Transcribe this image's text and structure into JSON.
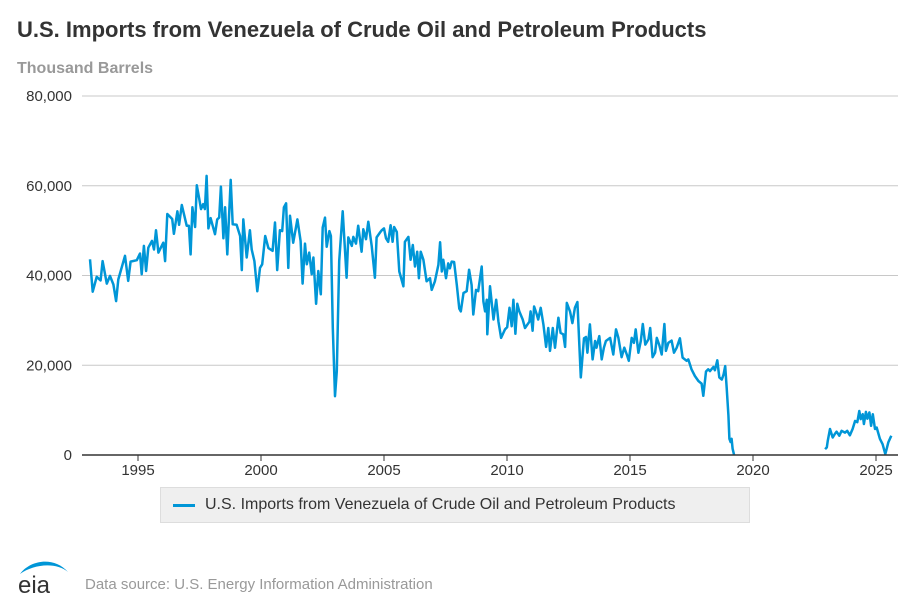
{
  "header": {
    "title": "U.S. Imports from Venezuela of Crude Oil and Petroleum Products",
    "unit": "Thousand Barrels"
  },
  "legend": {
    "label": "U.S. Imports from Venezuela of Crude Oil and Petroleum Products"
  },
  "footer": {
    "logo_text": "eia",
    "source": "Data source: U.S. Energy Information Administration"
  },
  "colors": {
    "series": "#0096d7",
    "grid": "#c8c8c8",
    "axis": "#333333"
  },
  "chart_data": {
    "type": "line",
    "title": "U.S. Imports from Venezuela of Crude Oil and Petroleum Products",
    "ylabel": "Thousand Barrels",
    "xlabel": "",
    "xlim": [
      1993,
      2025.7
    ],
    "ylim": [
      0,
      80000
    ],
    "grid": true,
    "legend_position": "bottom",
    "x_ticks": [
      "1995",
      "2000",
      "2005",
      "2010",
      "2015",
      "2020",
      "2025"
    ],
    "y_ticks": [
      "0",
      "20,000",
      "40,000",
      "60,000",
      "80,000"
    ],
    "series": [
      {
        "name": "U.S. Imports from Venezuela of Crude Oil and Petroleum Products",
        "points": [
          [
            1993.05,
            43600
          ],
          [
            1993.16,
            36400
          ],
          [
            1993.32,
            39700
          ],
          [
            1993.48,
            38900
          ],
          [
            1993.56,
            43200
          ],
          [
            1993.73,
            38200
          ],
          [
            1993.86,
            39900
          ],
          [
            1994.0,
            38000
          ],
          [
            1994.11,
            34300
          ],
          [
            1994.2,
            39100
          ],
          [
            1994.47,
            44400
          ],
          [
            1994.6,
            38800
          ],
          [
            1994.7,
            43100
          ],
          [
            1994.95,
            43400
          ],
          [
            1995.08,
            44900
          ],
          [
            1995.15,
            40300
          ],
          [
            1995.24,
            46600
          ],
          [
            1995.33,
            41000
          ],
          [
            1995.42,
            46200
          ],
          [
            1995.57,
            47700
          ],
          [
            1995.65,
            45800
          ],
          [
            1995.73,
            50100
          ],
          [
            1995.83,
            45100
          ],
          [
            1996.03,
            47300
          ],
          [
            1996.1,
            43200
          ],
          [
            1996.19,
            53700
          ],
          [
            1996.39,
            52600
          ],
          [
            1996.46,
            49300
          ],
          [
            1996.6,
            54300
          ],
          [
            1996.67,
            51300
          ],
          [
            1996.78,
            55700
          ],
          [
            1996.98,
            51100
          ],
          [
            1997.07,
            51100
          ],
          [
            1997.14,
            44700
          ],
          [
            1997.21,
            55200
          ],
          [
            1997.32,
            50800
          ],
          [
            1997.39,
            60100
          ],
          [
            1997.49,
            57000
          ],
          [
            1997.56,
            54800
          ],
          [
            1997.65,
            55900
          ],
          [
            1997.72,
            54800
          ],
          [
            1997.79,
            62200
          ],
          [
            1997.86,
            50500
          ],
          [
            1997.95,
            52800
          ],
          [
            1998.13,
            49200
          ],
          [
            1998.22,
            52500
          ],
          [
            1998.3,
            52900
          ],
          [
            1998.37,
            59800
          ],
          [
            1998.47,
            48300
          ],
          [
            1998.54,
            55200
          ],
          [
            1998.63,
            44700
          ],
          [
            1998.77,
            61300
          ],
          [
            1998.85,
            51400
          ],
          [
            1999.01,
            51300
          ],
          [
            1999.15,
            48800
          ],
          [
            1999.22,
            41200
          ],
          [
            1999.28,
            52500
          ],
          [
            1999.42,
            44000
          ],
          [
            1999.55,
            50100
          ],
          [
            1999.62,
            45800
          ],
          [
            1999.73,
            43200
          ],
          [
            1999.85,
            36500
          ],
          [
            1999.96,
            41700
          ],
          [
            2000.05,
            42500
          ],
          [
            2000.17,
            48800
          ],
          [
            2000.3,
            46100
          ],
          [
            2000.47,
            45500
          ],
          [
            2000.57,
            51800
          ],
          [
            2000.66,
            41200
          ],
          [
            2000.77,
            50100
          ],
          [
            2000.86,
            49900
          ],
          [
            2000.93,
            55200
          ],
          [
            2001.02,
            56100
          ],
          [
            2001.11,
            41700
          ],
          [
            2001.18,
            53300
          ],
          [
            2001.31,
            47300
          ],
          [
            2001.48,
            52500
          ],
          [
            2001.61,
            47700
          ],
          [
            2001.69,
            38200
          ],
          [
            2001.79,
            47100
          ],
          [
            2001.86,
            42500
          ],
          [
            2001.96,
            45100
          ],
          [
            2002.06,
            40300
          ],
          [
            2002.13,
            44000
          ],
          [
            2002.24,
            33700
          ],
          [
            2002.33,
            41000
          ],
          [
            2002.43,
            35800
          ],
          [
            2002.51,
            50700
          ],
          [
            2002.6,
            52900
          ],
          [
            2002.67,
            46400
          ],
          [
            2002.78,
            49900
          ],
          [
            2002.84,
            48800
          ],
          [
            2002.92,
            28300
          ],
          [
            2003.01,
            13100
          ],
          [
            2003.08,
            18700
          ],
          [
            2003.18,
            43200
          ],
          [
            2003.32,
            54300
          ],
          [
            2003.48,
            39500
          ],
          [
            2003.55,
            48500
          ],
          [
            2003.69,
            46600
          ],
          [
            2003.75,
            48600
          ],
          [
            2003.86,
            47100
          ],
          [
            2003.95,
            51100
          ],
          [
            2004.09,
            45300
          ],
          [
            2004.16,
            50300
          ],
          [
            2004.27,
            48100
          ],
          [
            2004.36,
            52000
          ],
          [
            2004.5,
            46600
          ],
          [
            2004.63,
            39500
          ],
          [
            2004.7,
            48500
          ],
          [
            2004.84,
            49600
          ],
          [
            2004.91,
            50100
          ],
          [
            2005.0,
            50500
          ],
          [
            2005.08,
            48300
          ],
          [
            2005.17,
            47500
          ],
          [
            2005.27,
            51200
          ],
          [
            2005.35,
            47500
          ],
          [
            2005.41,
            50800
          ],
          [
            2005.52,
            49700
          ],
          [
            2005.62,
            40900
          ],
          [
            2005.79,
            37600
          ],
          [
            2005.85,
            47500
          ],
          [
            2005.99,
            48600
          ],
          [
            2006.08,
            43500
          ],
          [
            2006.17,
            46800
          ],
          [
            2006.26,
            42000
          ],
          [
            2006.35,
            45300
          ],
          [
            2006.42,
            39400
          ],
          [
            2006.49,
            45300
          ],
          [
            2006.6,
            43500
          ],
          [
            2006.73,
            38700
          ],
          [
            2006.87,
            39400
          ],
          [
            2006.94,
            36800
          ],
          [
            2007.07,
            38700
          ],
          [
            2007.21,
            42400
          ],
          [
            2007.28,
            47400
          ],
          [
            2007.35,
            40900
          ],
          [
            2007.41,
            43500
          ],
          [
            2007.52,
            39400
          ],
          [
            2007.61,
            42700
          ],
          [
            2007.68,
            41600
          ],
          [
            2007.75,
            43100
          ],
          [
            2007.85,
            43000
          ],
          [
            2007.96,
            37900
          ],
          [
            2008.06,
            32600
          ],
          [
            2008.12,
            32000
          ],
          [
            2008.23,
            36100
          ],
          [
            2008.36,
            36500
          ],
          [
            2008.46,
            41300
          ],
          [
            2008.56,
            37900
          ],
          [
            2008.63,
            31300
          ],
          [
            2008.74,
            36800
          ],
          [
            2008.83,
            36500
          ],
          [
            2008.97,
            42000
          ],
          [
            2009.04,
            34200
          ],
          [
            2009.11,
            32000
          ],
          [
            2009.18,
            34600
          ],
          [
            2009.2,
            26900
          ],
          [
            2009.31,
            37600
          ],
          [
            2009.45,
            30200
          ],
          [
            2009.56,
            34600
          ],
          [
            2009.65,
            29800
          ],
          [
            2009.76,
            26100
          ],
          [
            2009.92,
            28000
          ],
          [
            2010.01,
            28500
          ],
          [
            2010.1,
            32800
          ],
          [
            2010.19,
            28700
          ],
          [
            2010.26,
            34600
          ],
          [
            2010.34,
            27000
          ],
          [
            2010.42,
            33700
          ],
          [
            2010.5,
            32000
          ],
          [
            2010.64,
            30200
          ],
          [
            2010.73,
            28300
          ],
          [
            2010.91,
            29700
          ],
          [
            2010.96,
            32000
          ],
          [
            2011.04,
            27700
          ],
          [
            2011.1,
            33100
          ],
          [
            2011.21,
            31300
          ],
          [
            2011.27,
            30200
          ],
          [
            2011.37,
            32800
          ],
          [
            2011.48,
            29100
          ],
          [
            2011.59,
            24100
          ],
          [
            2011.68,
            28300
          ],
          [
            2011.75,
            23200
          ],
          [
            2011.86,
            28300
          ],
          [
            2011.95,
            23900
          ],
          [
            2012.09,
            30600
          ],
          [
            2012.18,
            27200
          ],
          [
            2012.29,
            26900
          ],
          [
            2012.36,
            24100
          ],
          [
            2012.43,
            33900
          ],
          [
            2012.56,
            32000
          ],
          [
            2012.66,
            29400
          ],
          [
            2012.76,
            32800
          ],
          [
            2012.86,
            34100
          ],
          [
            2013.0,
            17300
          ],
          [
            2013.13,
            26000
          ],
          [
            2013.21,
            26300
          ],
          [
            2013.27,
            22800
          ],
          [
            2013.37,
            29100
          ],
          [
            2013.48,
            21300
          ],
          [
            2013.58,
            25400
          ],
          [
            2013.64,
            23900
          ],
          [
            2013.75,
            26500
          ],
          [
            2013.85,
            21300
          ],
          [
            2013.94,
            23900
          ],
          [
            2014.02,
            25400
          ],
          [
            2014.19,
            26100
          ],
          [
            2014.32,
            22400
          ],
          [
            2014.43,
            28000
          ],
          [
            2014.53,
            26100
          ],
          [
            2014.66,
            21800
          ],
          [
            2014.77,
            23900
          ],
          [
            2014.87,
            22400
          ],
          [
            2014.95,
            21000
          ],
          [
            2015.07,
            26100
          ],
          [
            2015.16,
            25000
          ],
          [
            2015.23,
            28000
          ],
          [
            2015.34,
            22800
          ],
          [
            2015.44,
            25400
          ],
          [
            2015.52,
            29200
          ],
          [
            2015.62,
            24600
          ],
          [
            2015.75,
            25800
          ],
          [
            2015.82,
            28300
          ],
          [
            2015.92,
            21800
          ],
          [
            2016.02,
            22800
          ],
          [
            2016.09,
            26100
          ],
          [
            2016.19,
            24500
          ],
          [
            2016.29,
            22400
          ],
          [
            2016.4,
            29200
          ],
          [
            2016.46,
            23200
          ],
          [
            2016.56,
            25000
          ],
          [
            2016.69,
            25500
          ],
          [
            2016.79,
            22800
          ],
          [
            2016.9,
            23900
          ],
          [
            2017.03,
            26000
          ],
          [
            2017.14,
            21700
          ],
          [
            2017.3,
            21000
          ],
          [
            2017.37,
            21300
          ],
          [
            2017.5,
            19100
          ],
          [
            2017.64,
            17600
          ],
          [
            2017.78,
            16500
          ],
          [
            2017.91,
            15900
          ],
          [
            2017.98,
            13200
          ],
          [
            2018.09,
            18600
          ],
          [
            2018.18,
            19100
          ],
          [
            2018.25,
            18700
          ],
          [
            2018.39,
            19600
          ],
          [
            2018.45,
            18900
          ],
          [
            2018.55,
            21100
          ],
          [
            2018.63,
            17300
          ],
          [
            2018.73,
            16800
          ],
          [
            2018.8,
            17900
          ],
          [
            2018.87,
            19800
          ],
          [
            2018.93,
            14900
          ],
          [
            2019.0,
            8900
          ],
          [
            2019.04,
            3600
          ],
          [
            2019.09,
            2900
          ],
          [
            2019.13,
            3600
          ],
          [
            2019.17,
            1400
          ],
          [
            2019.23,
            0
          ],
          [
            2019.3,
            null
          ],
          [
            2022.93,
            1300
          ],
          [
            2023.0,
            1700
          ],
          [
            2023.04,
            3200
          ],
          [
            2023.13,
            5800
          ],
          [
            2023.24,
            3900
          ],
          [
            2023.33,
            4700
          ],
          [
            2023.4,
            5200
          ],
          [
            2023.51,
            4300
          ],
          [
            2023.6,
            5400
          ],
          [
            2023.74,
            5000
          ],
          [
            2023.83,
            5400
          ],
          [
            2023.94,
            4400
          ],
          [
            2024.05,
            5800
          ],
          [
            2024.15,
            7600
          ],
          [
            2024.24,
            7300
          ],
          [
            2024.32,
            9800
          ],
          [
            2024.38,
            8000
          ],
          [
            2024.46,
            9100
          ],
          [
            2024.51,
            6900
          ],
          [
            2024.59,
            9600
          ],
          [
            2024.65,
            8100
          ],
          [
            2024.73,
            9500
          ],
          [
            2024.8,
            6500
          ],
          [
            2024.87,
            9100
          ],
          [
            2024.96,
            5800
          ],
          [
            2025.03,
            6100
          ],
          [
            2025.16,
            3600
          ],
          [
            2025.27,
            2400
          ],
          [
            2025.38,
            200
          ],
          [
            2025.43,
            1300
          ],
          [
            2025.5,
            2800
          ],
          [
            2025.62,
            4300
          ]
        ]
      }
    ]
  }
}
